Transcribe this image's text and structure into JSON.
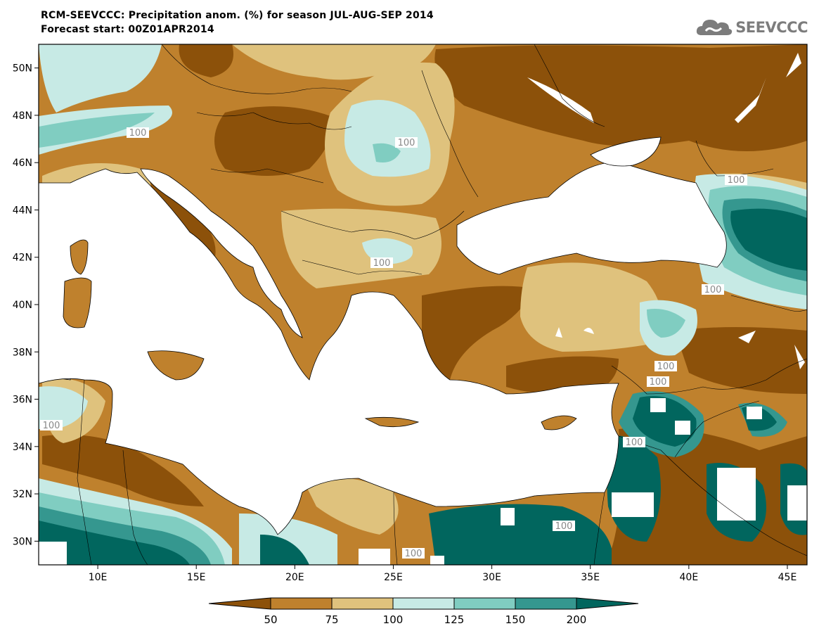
{
  "title": {
    "line1": "RCM-SEEVCCC: Precipitation anom. (%) for season JUL-AUG-SEP 2014",
    "line2": "Forecast start: 00Z01APR2014"
  },
  "logo": {
    "text": "SEEVCCC",
    "icon": "cloud-icon"
  },
  "chart_data": {
    "type": "heatmap",
    "variable": "Precipitation anom. (%)",
    "season": "JUL-AUG-SEP 2014",
    "forecast_start": "00Z01APR2014",
    "x_axis": {
      "ticks": [
        "10E",
        "15E",
        "20E",
        "25E",
        "30E",
        "35E",
        "40E",
        "45E"
      ],
      "range_lon": [
        7,
        46
      ]
    },
    "y_axis": {
      "ticks": [
        "50N",
        "48N",
        "46N",
        "44N",
        "42N",
        "40N",
        "38N",
        "36N",
        "34N",
        "32N",
        "30N"
      ],
      "range_lat": [
        29,
        51
      ]
    },
    "colorbar": {
      "ticks": [
        "50",
        "75",
        "100",
        "125",
        "150",
        "200"
      ],
      "bins": [
        {
          "range": "<50",
          "color": "#8c510a"
        },
        {
          "range": "50-75",
          "color": "#bf812d"
        },
        {
          "range": "75-100",
          "color": "#dfc27d"
        },
        {
          "range": "100-125",
          "color": "#c7eae5"
        },
        {
          "range": "125-150",
          "color": "#80cdc1"
        },
        {
          "range": "150-200",
          "color": "#35978f"
        },
        {
          "range": ">200",
          "color": "#01665e"
        }
      ]
    },
    "contour_labels": [
      "100",
      "100",
      "100",
      "100",
      "100",
      "100",
      "100",
      "100",
      "100",
      "100",
      "100"
    ]
  }
}
